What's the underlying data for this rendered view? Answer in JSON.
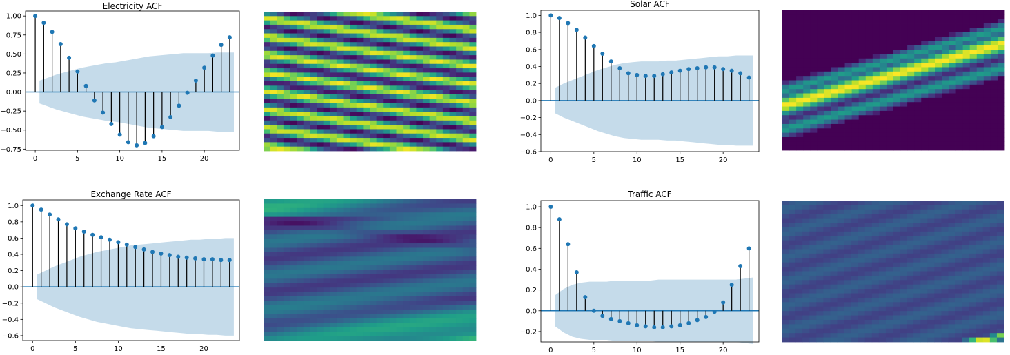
{
  "colors": {
    "stem": "#000000",
    "marker": "#1f77b4",
    "baseline": "#1f77b4",
    "confidence_band": "#c5dbea",
    "heatmap_colormap": "viridis"
  },
  "chart_data": [
    {
      "type": "scatter",
      "subtype": "stem-acf",
      "title": "Electricity ACF",
      "xlabel": "",
      "ylabel": "",
      "xlim": [
        -1.15,
        24.15
      ],
      "ylim": [
        -0.765,
        1.065
      ],
      "xticks": [
        0,
        5,
        10,
        15,
        20
      ],
      "yticks": [
        -0.75,
        -0.5,
        -0.25,
        0.0,
        0.25,
        0.5,
        0.75,
        1.0
      ],
      "ytick_labels": [
        "−0.75",
        "−0.50",
        "−0.25",
        "0.00",
        "0.25",
        "0.50",
        "0.75",
        "1.00"
      ],
      "lags": [
        0,
        1,
        2,
        3,
        4,
        5,
        6,
        7,
        8,
        9,
        10,
        11,
        12,
        13,
        14,
        15,
        16,
        17,
        18,
        19,
        20,
        21,
        22,
        23
      ],
      "values": [
        1.0,
        0.91,
        0.79,
        0.63,
        0.45,
        0.27,
        0.08,
        -0.11,
        -0.27,
        -0.42,
        -0.56,
        -0.66,
        -0.7,
        -0.67,
        -0.58,
        -0.46,
        -0.33,
        -0.18,
        -0.01,
        0.15,
        0.32,
        0.48,
        0.62,
        0.72
      ],
      "confint_upper": [
        0.15,
        0.19,
        0.23,
        0.26,
        0.29,
        0.32,
        0.34,
        0.36,
        0.38,
        0.39,
        0.41,
        0.43,
        0.45,
        0.47,
        0.48,
        0.49,
        0.5,
        0.51,
        0.51,
        0.51,
        0.51,
        0.52,
        0.52,
        0.52
      ],
      "grid": false
    },
    {
      "type": "heatmap",
      "title": "",
      "colormap": "viridis",
      "rows": 32,
      "cols": 32,
      "pattern": "diagonal-bands-dense"
    },
    {
      "type": "scatter",
      "subtype": "stem-acf",
      "title": "Solar ACF",
      "xlabel": "",
      "ylabel": "",
      "xlim": [
        -1.15,
        24.15
      ],
      "ylim": [
        -0.6,
        1.06
      ],
      "xticks": [
        0,
        5,
        10,
        15,
        20
      ],
      "yticks": [
        -0.6,
        -0.4,
        -0.2,
        0.0,
        0.2,
        0.4,
        0.6,
        0.8,
        1.0
      ],
      "ytick_labels": [
        "−0.6",
        "−0.4",
        "−0.2",
        "0.0",
        "0.2",
        "0.4",
        "0.6",
        "0.8",
        "1.0"
      ],
      "lags": [
        0,
        1,
        2,
        3,
        4,
        5,
        6,
        7,
        8,
        9,
        10,
        11,
        12,
        13,
        14,
        15,
        16,
        17,
        18,
        19,
        20,
        21,
        22,
        23
      ],
      "values": [
        1.0,
        0.97,
        0.91,
        0.83,
        0.74,
        0.64,
        0.55,
        0.46,
        0.38,
        0.32,
        0.3,
        0.29,
        0.29,
        0.31,
        0.33,
        0.35,
        0.37,
        0.38,
        0.39,
        0.39,
        0.37,
        0.35,
        0.32,
        0.27
      ],
      "confint_upper": [
        0.15,
        0.2,
        0.24,
        0.28,
        0.32,
        0.36,
        0.39,
        0.42,
        0.44,
        0.45,
        0.46,
        0.46,
        0.46,
        0.47,
        0.47,
        0.48,
        0.49,
        0.5,
        0.51,
        0.52,
        0.52,
        0.53,
        0.53,
        0.53
      ],
      "grid": false
    },
    {
      "type": "heatmap",
      "title": "",
      "colormap": "viridis",
      "rows": 32,
      "cols": 32,
      "pattern": "diagonal-bands-solar"
    },
    {
      "type": "scatter",
      "subtype": "stem-acf",
      "title": "Exchange Rate ACF",
      "xlabel": "",
      "ylabel": "",
      "xlim": [
        -1.15,
        24.15
      ],
      "ylim": [
        -0.66,
        1.07
      ],
      "xticks": [
        0,
        5,
        10,
        15,
        20
      ],
      "yticks": [
        -0.6,
        -0.4,
        -0.2,
        0.0,
        0.2,
        0.4,
        0.6,
        0.8,
        1.0
      ],
      "ytick_labels": [
        "−0.6",
        "−0.4",
        "−0.2",
        "0.0",
        "0.2",
        "0.4",
        "0.6",
        "0.8",
        "1.0"
      ],
      "lags": [
        0,
        1,
        2,
        3,
        4,
        5,
        6,
        7,
        8,
        9,
        10,
        11,
        12,
        13,
        14,
        15,
        16,
        17,
        18,
        19,
        20,
        21,
        22,
        23
      ],
      "values": [
        1.0,
        0.95,
        0.89,
        0.83,
        0.77,
        0.72,
        0.68,
        0.64,
        0.61,
        0.58,
        0.55,
        0.52,
        0.49,
        0.46,
        0.43,
        0.41,
        0.39,
        0.37,
        0.36,
        0.35,
        0.34,
        0.34,
        0.33,
        0.33
      ],
      "confint_upper": [
        0.15,
        0.2,
        0.25,
        0.29,
        0.33,
        0.37,
        0.4,
        0.43,
        0.45,
        0.47,
        0.49,
        0.51,
        0.52,
        0.53,
        0.54,
        0.55,
        0.56,
        0.57,
        0.58,
        0.58,
        0.59,
        0.59,
        0.6,
        0.6
      ],
      "grid": false
    },
    {
      "type": "heatmap",
      "title": "",
      "colormap": "viridis",
      "rows": 32,
      "cols": 32,
      "pattern": "diagonal-bands-faint"
    },
    {
      "type": "scatter",
      "subtype": "stem-acf",
      "title": "Traffic ACF",
      "xlabel": "",
      "ylabel": "",
      "xlim": [
        -1.15,
        24.15
      ],
      "ylim": [
        -0.3,
        1.06
      ],
      "xticks": [
        0,
        5,
        10,
        15,
        20
      ],
      "yticks": [
        -0.2,
        0.0,
        0.2,
        0.4,
        0.6,
        0.8,
        1.0
      ],
      "ytick_labels": [
        "−0.2",
        "0.0",
        "0.2",
        "0.4",
        "0.6",
        "0.8",
        "1.0"
      ],
      "lags": [
        0,
        1,
        2,
        3,
        4,
        5,
        6,
        7,
        8,
        9,
        10,
        11,
        12,
        13,
        14,
        15,
        16,
        17,
        18,
        19,
        20,
        21,
        22,
        23
      ],
      "values": [
        1.0,
        0.88,
        0.64,
        0.37,
        0.13,
        0.0,
        -0.05,
        -0.08,
        -0.1,
        -0.12,
        -0.14,
        -0.15,
        -0.16,
        -0.16,
        -0.15,
        -0.14,
        -0.12,
        -0.09,
        -0.06,
        -0.01,
        0.08,
        0.25,
        0.43,
        0.6
      ],
      "confint_upper": [
        0.15,
        0.21,
        0.25,
        0.27,
        0.28,
        0.28,
        0.28,
        0.29,
        0.29,
        0.29,
        0.29,
        0.29,
        0.3,
        0.3,
        0.3,
        0.3,
        0.3,
        0.3,
        0.3,
        0.3,
        0.3,
        0.3,
        0.31,
        0.32
      ],
      "grid": false
    },
    {
      "type": "heatmap",
      "title": "",
      "colormap": "viridis",
      "rows": 32,
      "cols": 32,
      "pattern": "diagonal-lines-sparse"
    }
  ]
}
